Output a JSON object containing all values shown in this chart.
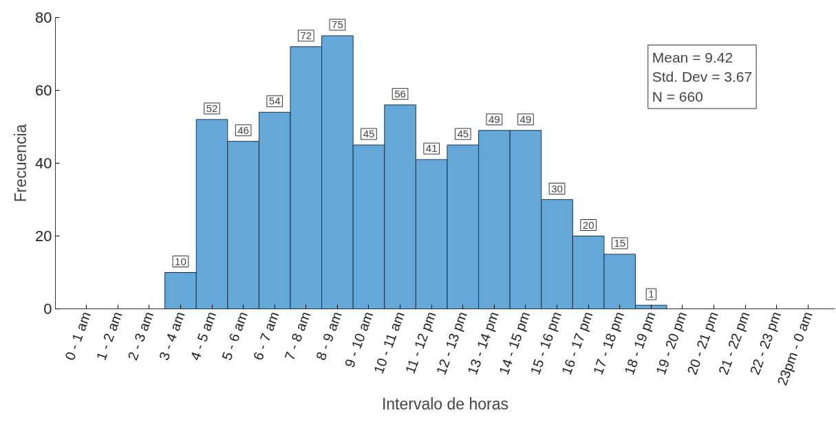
{
  "chart_data": {
    "type": "bar",
    "xlabel": "Intervalo de horas",
    "ylabel": "Frecuencia",
    "categories": [
      "0 - 1 am",
      "1 - 2 am",
      "2 - 3 am",
      "3 - 4 am",
      "4 - 5 am",
      "5 - 6 am",
      "6 - 7 am",
      "7 - 8 am",
      "8 - 9 am",
      "9 - 10 am",
      "10 - 11 am",
      "11 - 12 pm",
      "12 - 13 pm",
      "13 - 14 pm",
      "14 - 15 pm",
      "15 - 16 pm",
      "16 - 17 pm",
      "17 - 18 pm",
      "18 - 19 pm",
      "19 - 20 pm",
      "20 - 21 pm",
      "21 - 22 pm",
      "22 - 23 pm",
      "23pm - 0 am"
    ],
    "values": [
      0,
      0,
      0,
      10,
      52,
      46,
      54,
      72,
      75,
      45,
      56,
      41,
      45,
      49,
      49,
      30,
      20,
      15,
      1,
      0,
      0,
      0,
      0,
      0
    ],
    "value_labels": [
      null,
      null,
      null,
      "10",
      "52",
      "46",
      "54",
      "72",
      "75",
      "45",
      "56",
      "41",
      "45",
      "49",
      "49",
      "30",
      "20",
      "15",
      "1",
      null,
      null,
      null,
      null,
      null
    ],
    "color": "#63a8d8",
    "ylim": [
      0,
      80
    ],
    "yticks": [
      0,
      20,
      40,
      60,
      80
    ],
    "grid": false,
    "annotations": [
      "Mean = 9.42",
      "Std. Dev = 3.67",
      "N = 660"
    ]
  }
}
